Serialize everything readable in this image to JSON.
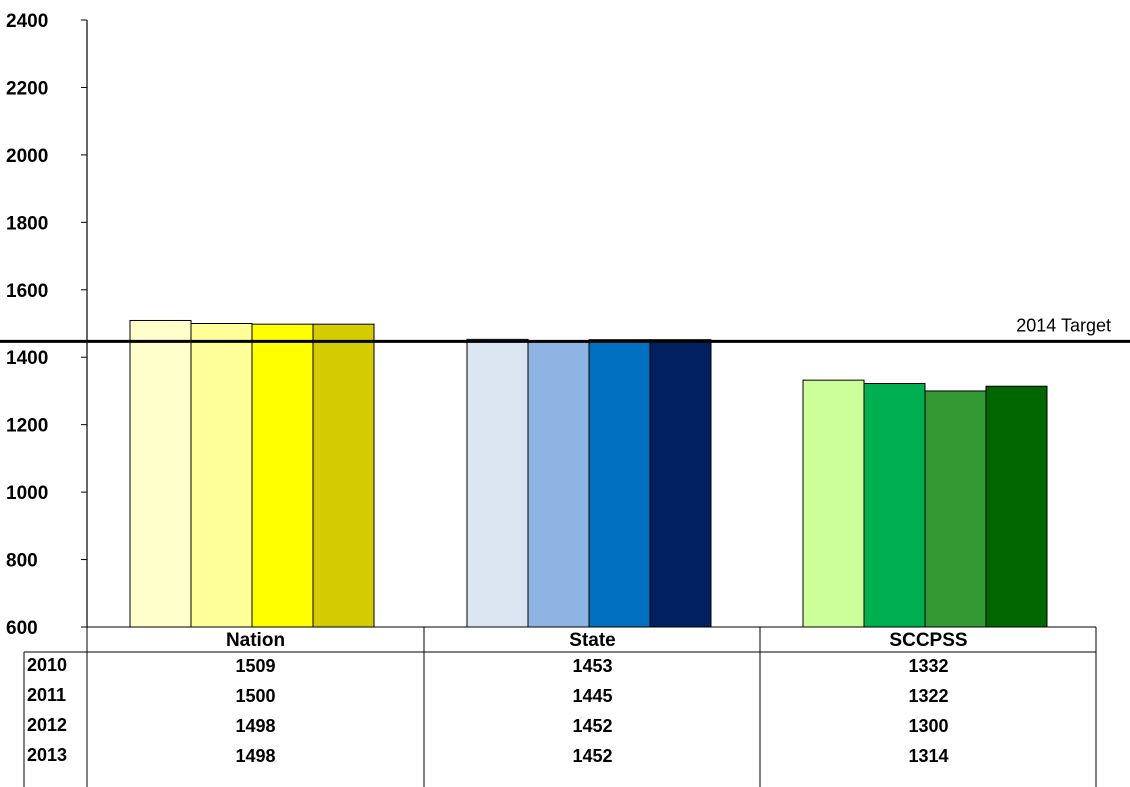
{
  "chart_data": {
    "type": "bar",
    "categories": [
      "Nation",
      "State",
      "SCCPSS"
    ],
    "series": [
      {
        "name": "2010",
        "values": [
          1509,
          1453,
          1332
        ]
      },
      {
        "name": "2011",
        "values": [
          1500,
          1445,
          1322
        ]
      },
      {
        "name": "2012",
        "values": [
          1498,
          1452,
          1300
        ]
      },
      {
        "name": "2013",
        "values": [
          1498,
          1452,
          1314
        ]
      }
    ],
    "colors": [
      [
        "#FFFFCC",
        "#FFFF99",
        "#FFFF00",
        "#D4CC00"
      ],
      [
        "#DCE6F2",
        "#8EB4E3",
        "#0070C0",
        "#002060"
      ],
      [
        "#CCFF99",
        "#00B050",
        "#339933",
        "#006600"
      ]
    ],
    "ylim": [
      600,
      2400
    ],
    "yticks": [
      600,
      800,
      1000,
      1200,
      1400,
      1600,
      1800,
      2000,
      2200,
      2400
    ],
    "target": {
      "label": "2014 Target",
      "value": 1447
    },
    "data_table": true,
    "grid": false,
    "title": "",
    "xlabel": "",
    "ylabel": ""
  }
}
